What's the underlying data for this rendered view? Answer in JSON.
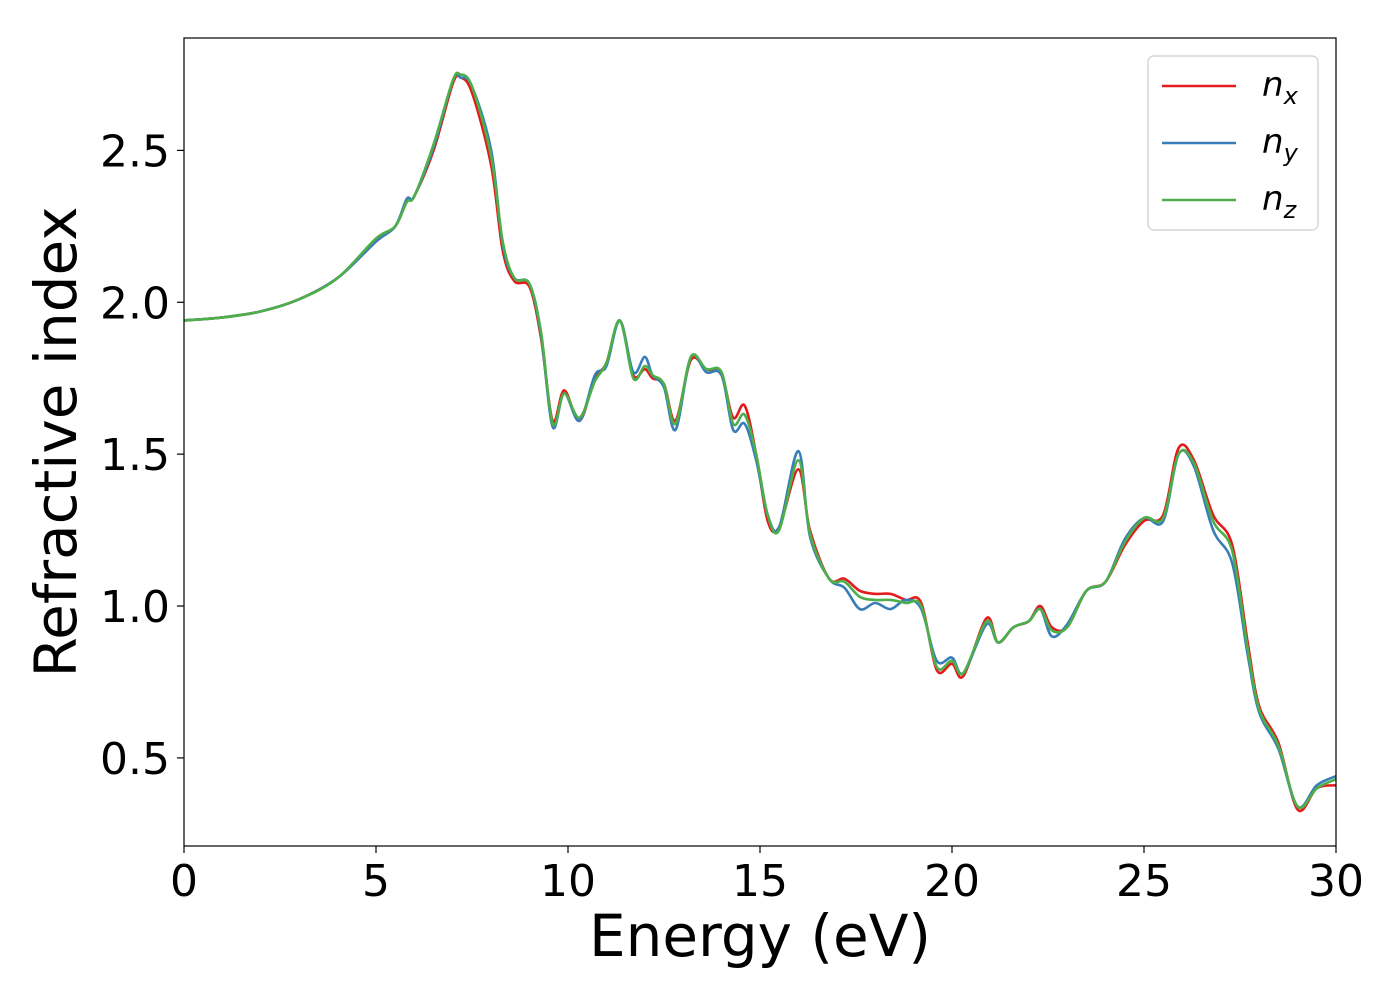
{
  "chart_data": {
    "type": "line",
    "title": "",
    "xlabel": "Energy (eV)",
    "ylabel": "Refractive index",
    "xlim": [
      0,
      30
    ],
    "ylim": [
      0.21,
      2.87
    ],
    "xticks": [
      0,
      5,
      10,
      15,
      20,
      25,
      30
    ],
    "xtick_labels": [
      "0",
      "5",
      "10",
      "15",
      "20",
      "25",
      "30"
    ],
    "yticks": [
      0.5,
      1.0,
      1.5,
      2.0,
      2.5
    ],
    "ytick_labels": [
      "0.5",
      "1.0",
      "1.5",
      "2.0",
      "2.5"
    ],
    "grid": false,
    "legend_position": "top-right",
    "x": [
      0,
      1,
      2,
      3,
      4,
      5,
      5.5,
      5.8,
      6,
      6.5,
      7,
      7.2,
      7.5,
      8,
      8.3,
      8.6,
      9,
      9.3,
      9.6,
      9.9,
      10.3,
      10.7,
      11,
      11.35,
      11.7,
      12,
      12.2,
      12.5,
      12.8,
      13.2,
      13.6,
      14,
      14.3,
      14.6,
      14.9,
      15.2,
      15.5,
      16,
      16.3,
      16.8,
      17.2,
      17.6,
      18,
      18.4,
      18.8,
      19.2,
      19.6,
      20,
      20.3,
      20.9,
      21.2,
      21.6,
      22,
      22.3,
      22.6,
      23,
      23.5,
      24,
      24.5,
      25,
      25.5,
      25.9,
      26.3,
      26.8,
      27.3,
      27.7,
      28,
      28.5,
      29,
      29.5,
      30
    ],
    "series": [
      {
        "name": "x",
        "color": "#e41a1c",
        "values": [
          1.94,
          1.95,
          1.97,
          2.01,
          2.08,
          2.2,
          2.25,
          2.33,
          2.35,
          2.5,
          2.72,
          2.74,
          2.69,
          2.45,
          2.17,
          2.07,
          2.05,
          1.88,
          1.61,
          1.71,
          1.61,
          1.75,
          1.8,
          1.94,
          1.76,
          1.78,
          1.75,
          1.73,
          1.61,
          1.81,
          1.78,
          1.76,
          1.62,
          1.66,
          1.5,
          1.28,
          1.26,
          1.45,
          1.25,
          1.09,
          1.09,
          1.05,
          1.04,
          1.04,
          1.02,
          1.01,
          0.79,
          0.81,
          0.77,
          0.96,
          0.88,
          0.93,
          0.95,
          1.0,
          0.93,
          0.93,
          1.05,
          1.08,
          1.2,
          1.28,
          1.3,
          1.52,
          1.48,
          1.3,
          1.2,
          0.88,
          0.67,
          0.55,
          0.33,
          0.4,
          0.41
        ]
      },
      {
        "name": "y",
        "color": "#377eb8",
        "values": [
          1.94,
          1.95,
          1.97,
          2.01,
          2.08,
          2.2,
          2.25,
          2.34,
          2.35,
          2.51,
          2.73,
          2.74,
          2.71,
          2.5,
          2.19,
          2.08,
          2.06,
          1.89,
          1.59,
          1.7,
          1.61,
          1.76,
          1.79,
          1.94,
          1.77,
          1.82,
          1.76,
          1.72,
          1.58,
          1.82,
          1.77,
          1.76,
          1.58,
          1.6,
          1.48,
          1.3,
          1.26,
          1.51,
          1.23,
          1.09,
          1.06,
          0.99,
          1.01,
          0.99,
          1.02,
          0.99,
          0.82,
          0.83,
          0.78,
          0.94,
          0.88,
          0.93,
          0.95,
          0.99,
          0.9,
          0.94,
          1.05,
          1.08,
          1.22,
          1.29,
          1.28,
          1.5,
          1.46,
          1.25,
          1.14,
          0.84,
          0.65,
          0.53,
          0.34,
          0.41,
          0.44
        ]
      },
      {
        "name": "z",
        "color": "#4daf4a",
        "values": [
          1.94,
          1.95,
          1.97,
          2.01,
          2.08,
          2.21,
          2.25,
          2.33,
          2.35,
          2.52,
          2.73,
          2.75,
          2.71,
          2.48,
          2.2,
          2.08,
          2.06,
          1.9,
          1.6,
          1.7,
          1.62,
          1.74,
          1.8,
          1.94,
          1.75,
          1.79,
          1.76,
          1.73,
          1.6,
          1.82,
          1.78,
          1.77,
          1.6,
          1.63,
          1.5,
          1.3,
          1.25,
          1.48,
          1.24,
          1.09,
          1.08,
          1.03,
          1.02,
          1.02,
          1.01,
          1.0,
          0.8,
          0.82,
          0.78,
          0.95,
          0.88,
          0.93,
          0.95,
          0.99,
          0.92,
          0.93,
          1.05,
          1.08,
          1.21,
          1.29,
          1.29,
          1.5,
          1.47,
          1.28,
          1.18,
          0.86,
          0.66,
          0.54,
          0.34,
          0.4,
          0.43
        ]
      }
    ]
  }
}
